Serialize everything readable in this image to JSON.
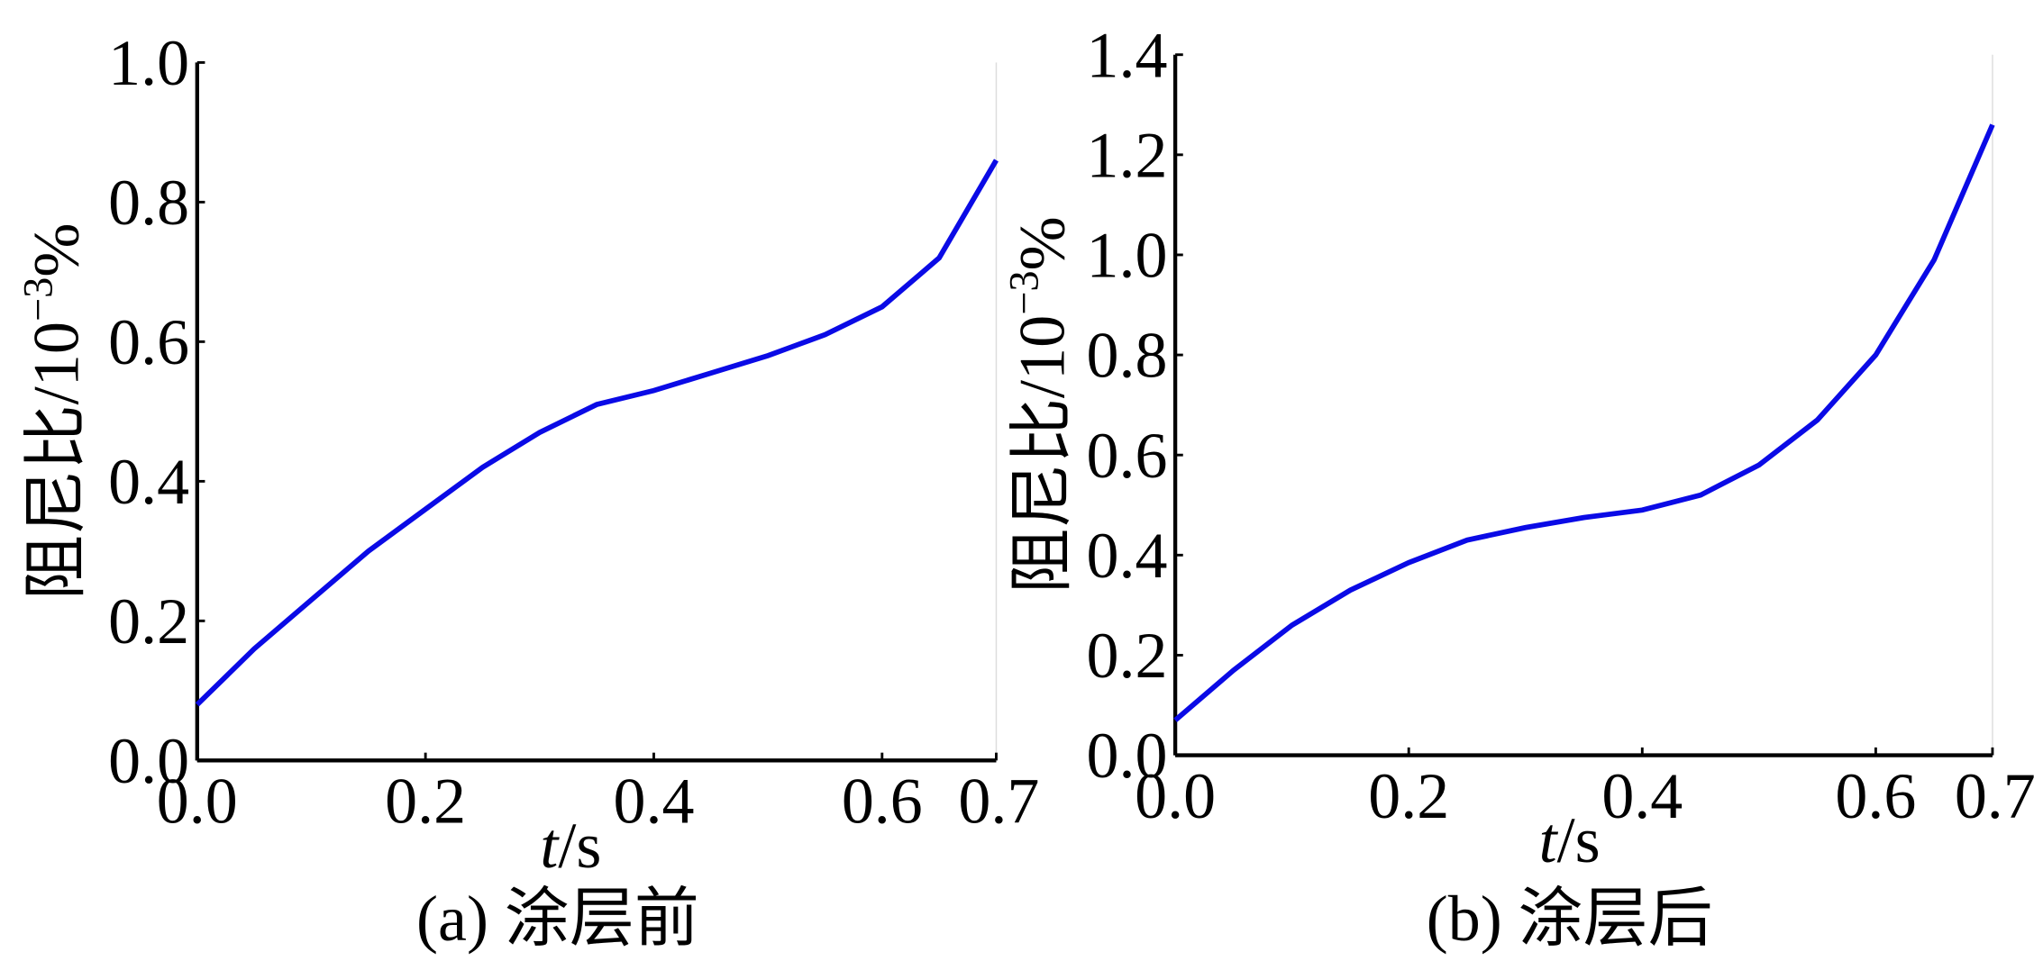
{
  "chart_data": [
    {
      "type": "line",
      "caption": "(a) 涂层前",
      "xlabel": [
        "t",
        "/s"
      ],
      "ylabel": [
        "阻尼比/10",
        "−3",
        "%"
      ],
      "x": [
        0,
        0.05,
        0.1,
        0.15,
        0.2,
        0.25,
        0.3,
        0.35,
        0.4,
        0.45,
        0.5,
        0.55,
        0.6,
        0.65,
        0.7
      ],
      "series": [
        {
          "color": "#0a0ae6",
          "values": [
            0.08,
            0.16,
            0.23,
            0.3,
            0.36,
            0.42,
            0.47,
            0.51,
            0.53,
            0.555,
            0.58,
            0.61,
            0.65,
            0.72,
            0.86
          ]
        }
      ],
      "xlim": [
        0,
        0.7
      ],
      "ylim": [
        0,
        1.0
      ],
      "xticks": [
        {
          "value": 0,
          "label": "0.0"
        },
        0.2,
        0.4,
        0.6,
        0.7
      ],
      "yticks": [
        {
          "value": 0,
          "label": "0.0"
        },
        0.2,
        0.4,
        0.6,
        0.8,
        {
          "value": 1.0,
          "label": "1.0"
        }
      ]
    },
    {
      "type": "line",
      "caption": "(b) 涂层后",
      "xlabel": [
        "t",
        "/s"
      ],
      "ylabel": [
        "阻尼比/10",
        "−3",
        "%"
      ],
      "x": [
        0,
        0.05,
        0.1,
        0.15,
        0.2,
        0.25,
        0.3,
        0.35,
        0.4,
        0.45,
        0.5,
        0.55,
        0.6,
        0.65,
        0.7
      ],
      "series": [
        {
          "color": "#0a0ae6",
          "values": [
            0.07,
            0.17,
            0.26,
            0.33,
            0.385,
            0.43,
            0.455,
            0.475,
            0.49,
            0.52,
            0.58,
            0.67,
            0.8,
            0.99,
            1.26
          ]
        }
      ],
      "xlim": [
        0,
        0.7
      ],
      "ylim": [
        0,
        1.4
      ],
      "xticks": [
        {
          "value": 0,
          "label": "0.0"
        },
        0.2,
        0.4,
        0.6,
        0.7
      ],
      "yticks": [
        {
          "value": 0,
          "label": "0.0"
        },
        0.2,
        0.4,
        0.6,
        0.8,
        {
          "value": 1.0,
          "label": "1.0"
        },
        1.2,
        1.4
      ]
    }
  ]
}
